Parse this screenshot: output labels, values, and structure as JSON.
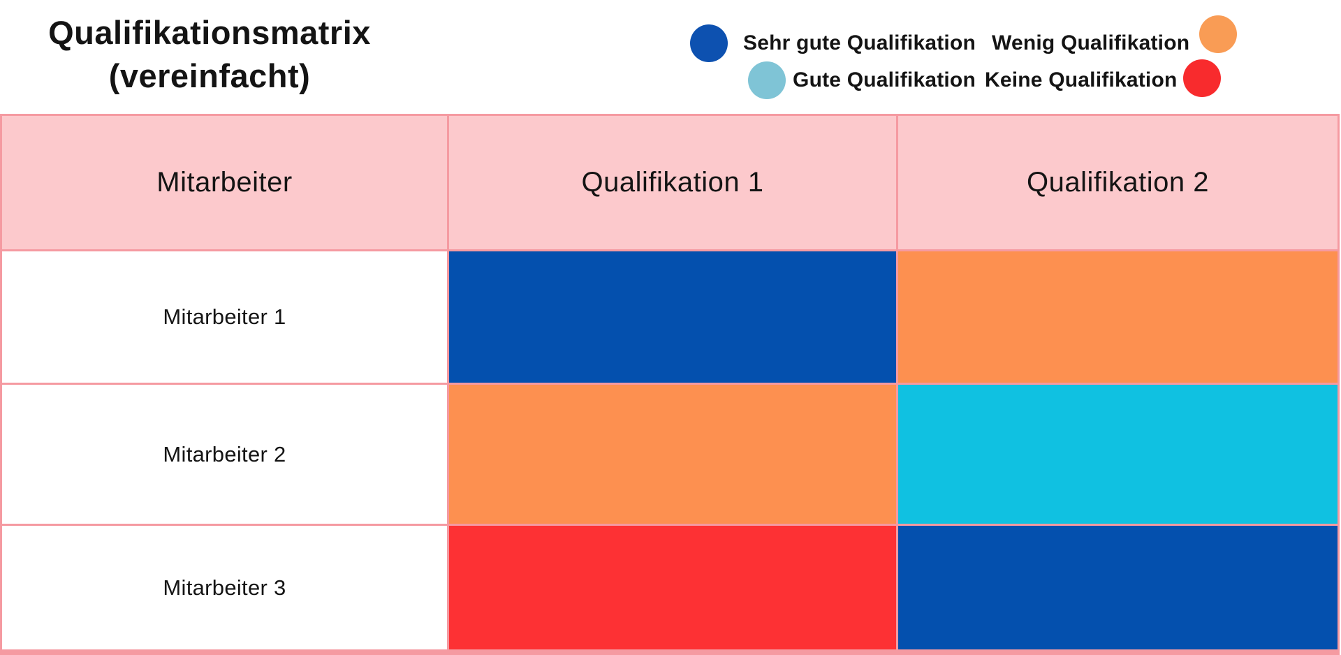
{
  "title": {
    "line1": "Qualifikationsmatrix",
    "line2": "(vereinfacht)"
  },
  "legend": {
    "items": [
      {
        "label": "Sehr gute Qualifikation",
        "color": "#0d51b0"
      },
      {
        "label": "Gute Qualifikation",
        "color": "#7fc4d6"
      },
      {
        "label": "Wenig Qualifikation",
        "color": "#f99c55"
      },
      {
        "label": "Keine Qualifikation",
        "color": "#f82b2d"
      }
    ]
  },
  "chart_data": {
    "type": "heatmap",
    "title": "Qualifikationsmatrix (vereinfacht)",
    "columns": [
      "Mitarbeiter",
      "Qualifikation 1",
      "Qualifikation 2"
    ],
    "rows": [
      {
        "label": "Mitarbeiter 1",
        "values": [
          "Sehr gute Qualifikation",
          "Wenig Qualifikation"
        ],
        "colors": [
          "#0450ae",
          "#fd9050"
        ]
      },
      {
        "label": "Mitarbeiter 2",
        "values": [
          "Wenig Qualifikation",
          "Gute Qualifikation"
        ],
        "colors": [
          "#fd9050",
          "#10c1e1"
        ]
      },
      {
        "label": "Mitarbeiter 3",
        "values": [
          "Keine Qualifikation",
          "Sehr gute Qualifikation"
        ],
        "colors": [
          "#fd3134",
          "#0450ae"
        ]
      }
    ],
    "legend": [
      {
        "label": "Sehr gute Qualifikation",
        "color": "#0d51b0"
      },
      {
        "label": "Gute Qualifikation",
        "color": "#7fc4d6"
      },
      {
        "label": "Wenig Qualifikation",
        "color": "#f99c55"
      },
      {
        "label": "Keine Qualifikation",
        "color": "#f82b2d"
      }
    ],
    "layout": {
      "header_bg": "#fcc9cc",
      "border_color": "#f59aa1",
      "row_label_bg": "#ffffff"
    }
  }
}
